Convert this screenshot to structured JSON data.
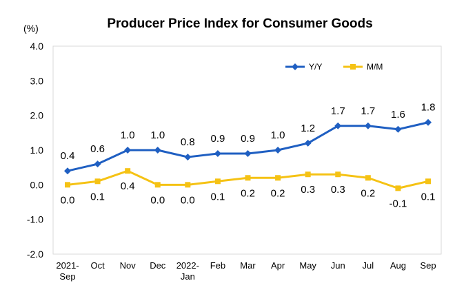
{
  "chart_data": {
    "type": "line",
    "title": "Producer Price Index for Consumer Goods",
    "unit_label": "(%)",
    "ylim": [
      -2.0,
      4.0
    ],
    "yticks": [
      "4.0",
      "3.0",
      "2.0",
      "1.0",
      "0.0",
      "-1.0",
      "-2.0"
    ],
    "ytick_values": [
      4,
      3,
      2,
      1,
      0,
      -1,
      -2
    ],
    "categories": [
      [
        "2021-",
        "Sep"
      ],
      [
        "Oct"
      ],
      [
        "Nov"
      ],
      [
        "Dec"
      ],
      [
        "2022-",
        "Jan"
      ],
      [
        "Feb"
      ],
      [
        "Mar"
      ],
      [
        "Apr"
      ],
      [
        "May"
      ],
      [
        "Jun"
      ],
      [
        "Jul"
      ],
      [
        "Aug"
      ],
      [
        "Sep"
      ]
    ],
    "grid": false,
    "legend_position": "top-right",
    "series": [
      {
        "name": "Y/Y",
        "color": "#1f5fc2",
        "marker": "diamond",
        "label_position": "above",
        "values": [
          0.4,
          0.6,
          1.0,
          1.0,
          0.8,
          0.9,
          0.9,
          1.0,
          1.2,
          1.7,
          1.7,
          1.6,
          1.8
        ],
        "labels": [
          "0.4",
          "0.6",
          "1.0",
          "1.0",
          "0.8",
          "0.9",
          "0.9",
          "1.0",
          "1.2",
          "1.7",
          "1.7",
          "1.6",
          "1.8"
        ]
      },
      {
        "name": "M/M",
        "color": "#f5c214",
        "marker": "square",
        "label_position": "below",
        "values": [
          0.0,
          0.1,
          0.4,
          0.0,
          0.0,
          0.1,
          0.2,
          0.2,
          0.3,
          0.3,
          0.2,
          -0.1,
          0.1
        ],
        "labels": [
          "0.0",
          "0.1",
          "0.4",
          "0.0",
          "0.0",
          "0.1",
          "0.2",
          "0.2",
          "0.3",
          "0.3",
          "0.2",
          "-0.1",
          "0.1"
        ]
      }
    ]
  }
}
